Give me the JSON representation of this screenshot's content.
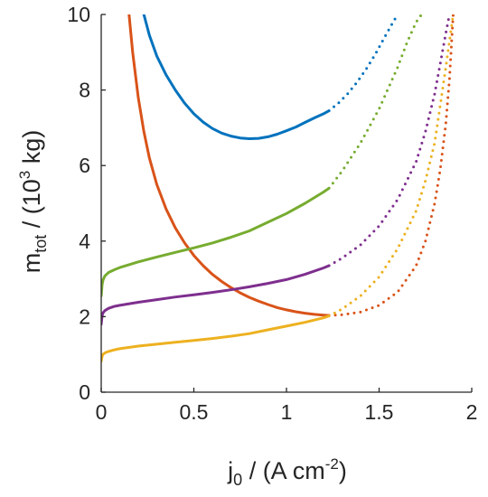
{
  "chart_data": {
    "type": "line",
    "title": "",
    "xlabel": {
      "pre": "j",
      "sub": "0",
      "mid": " / (A cm",
      "sup": "-2",
      "post": ")"
    },
    "ylabel": {
      "pre": "m",
      "sub": "tot",
      "mid": " / (10",
      "sup": "3",
      "post": " kg)"
    },
    "xlim": [
      0,
      2
    ],
    "ylim": [
      0,
      10
    ],
    "xticks": [
      0,
      0.5,
      1,
      1.5,
      2
    ],
    "xtick_labels": [
      "0",
      "0.5",
      "1",
      "1.5",
      "2"
    ],
    "yticks": [
      0,
      2,
      4,
      6,
      8,
      10
    ],
    "ytick_labels": [
      "0",
      "2",
      "4",
      "6",
      "8",
      "10"
    ],
    "grid": false,
    "legend": "none",
    "solid_dotted_boundary_x": 1.23,
    "series": [
      {
        "color": "#0072bd",
        "x": [
          0.23,
          0.26,
          0.3,
          0.35,
          0.4,
          0.45,
          0.5,
          0.55,
          0.6,
          0.65,
          0.7,
          0.75,
          0.8,
          0.85,
          0.9,
          0.95,
          1.0,
          1.05,
          1.1,
          1.15,
          1.2,
          1.23,
          1.28,
          1.33,
          1.38,
          1.43,
          1.48,
          1.53,
          1.57,
          1.6
        ],
        "y": [
          10.0,
          9.45,
          8.9,
          8.4,
          8.0,
          7.65,
          7.37,
          7.15,
          6.98,
          6.86,
          6.78,
          6.73,
          6.71,
          6.72,
          6.76,
          6.83,
          6.92,
          7.02,
          7.14,
          7.26,
          7.37,
          7.45,
          7.65,
          7.9,
          8.2,
          8.55,
          8.95,
          9.4,
          9.75,
          10.0
        ]
      },
      {
        "color": "#d95319",
        "x": [
          0.15,
          0.17,
          0.2,
          0.23,
          0.26,
          0.3,
          0.35,
          0.4,
          0.45,
          0.5,
          0.55,
          0.6,
          0.65,
          0.7,
          0.75,
          0.8,
          0.85,
          0.9,
          0.95,
          1.0,
          1.05,
          1.1,
          1.15,
          1.2,
          1.23,
          1.3,
          1.4,
          1.5,
          1.6,
          1.7,
          1.75,
          1.8,
          1.83,
          1.86,
          1.88,
          1.9
        ],
        "y": [
          10.0,
          9.0,
          7.8,
          6.9,
          6.2,
          5.5,
          4.85,
          4.35,
          3.95,
          3.62,
          3.35,
          3.12,
          2.93,
          2.77,
          2.63,
          2.51,
          2.41,
          2.32,
          2.24,
          2.18,
          2.13,
          2.09,
          2.06,
          2.04,
          2.03,
          2.05,
          2.12,
          2.3,
          2.65,
          3.35,
          4.0,
          5.0,
          5.9,
          7.1,
          8.3,
          10.0
        ]
      },
      {
        "color": "#77ac30",
        "x": [
          0.0,
          0.005,
          0.01,
          0.02,
          0.04,
          0.07,
          0.1,
          0.2,
          0.3,
          0.4,
          0.5,
          0.6,
          0.7,
          0.8,
          0.9,
          1.0,
          1.1,
          1.2,
          1.23,
          1.3,
          1.4,
          1.5,
          1.6,
          1.65,
          1.7,
          1.73
        ],
        "y": [
          2.55,
          2.85,
          2.97,
          3.08,
          3.17,
          3.24,
          3.3,
          3.45,
          3.58,
          3.7,
          3.82,
          3.95,
          4.1,
          4.27,
          4.5,
          4.73,
          5.0,
          5.3,
          5.4,
          5.85,
          6.6,
          7.5,
          8.6,
          9.25,
          9.8,
          10.0
        ]
      },
      {
        "color": "#7e2f8e",
        "x": [
          0.0,
          0.005,
          0.01,
          0.02,
          0.04,
          0.07,
          0.1,
          0.2,
          0.3,
          0.4,
          0.5,
          0.6,
          0.7,
          0.8,
          0.9,
          1.0,
          1.1,
          1.2,
          1.23,
          1.3,
          1.4,
          1.5,
          1.6,
          1.7,
          1.75,
          1.8,
          1.83,
          1.86,
          1.88
        ],
        "y": [
          1.8,
          2.03,
          2.1,
          2.16,
          2.22,
          2.27,
          2.3,
          2.38,
          2.45,
          2.52,
          2.58,
          2.64,
          2.71,
          2.79,
          2.88,
          2.98,
          3.12,
          3.29,
          3.35,
          3.55,
          3.9,
          4.4,
          5.1,
          6.1,
          6.9,
          7.9,
          8.7,
          9.5,
          10.0
        ]
      },
      {
        "color": "#edb120",
        "x": [
          0.0,
          0.005,
          0.01,
          0.02,
          0.04,
          0.07,
          0.1,
          0.2,
          0.3,
          0.4,
          0.5,
          0.6,
          0.7,
          0.8,
          0.9,
          1.0,
          1.1,
          1.2,
          1.23,
          1.3,
          1.4,
          1.5,
          1.6,
          1.7,
          1.75,
          1.8,
          1.83,
          1.86,
          1.88,
          1.9
        ],
        "y": [
          0.82,
          0.95,
          1.0,
          1.04,
          1.08,
          1.12,
          1.15,
          1.22,
          1.27,
          1.32,
          1.37,
          1.42,
          1.48,
          1.55,
          1.65,
          1.75,
          1.85,
          1.97,
          2.02,
          2.2,
          2.55,
          3.05,
          3.8,
          4.8,
          5.6,
          6.6,
          7.6,
          8.6,
          9.3,
          10.0
        ]
      }
    ]
  }
}
